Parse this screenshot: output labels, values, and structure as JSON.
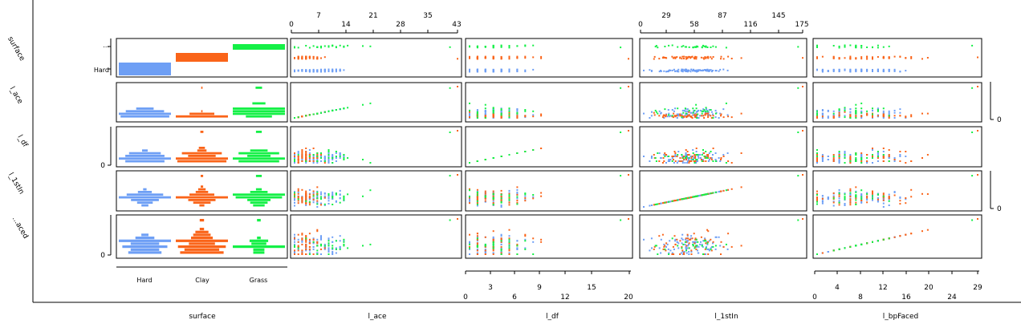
{
  "chart_data": {
    "type": "scatter",
    "matrix_type": "generalized pairs plot",
    "variables": [
      "surface",
      "l_ace",
      "l_df",
      "l_1stIn",
      "l_bpFaced"
    ],
    "row_strip_labels": [
      "surface",
      "l_ace",
      "l_df",
      "l_1stIn",
      "l_bpFaced"
    ],
    "row_label_visible_text": [
      "surface",
      "l_ace",
      "l_df",
      "l_1stIn",
      "...aced"
    ],
    "column_labels": [
      "surface",
      "l_ace",
      "l_df",
      "l_1stIn",
      "l_bpFaced"
    ],
    "categories": [
      "Hard",
      "Clay",
      "Grass"
    ],
    "category_colors": {
      "Hard": "#6e9ff5",
      "Clay": "#fa6419",
      "Grass": "#14f046"
    },
    "surface_counts": {
      "Hard": 1500,
      "Clay": 1050,
      "Grass": 350
    },
    "surface_diag_axis": {
      "ellipsis": "...",
      "label": "Hard"
    },
    "ranges": {
      "l_ace": [
        0,
        43
      ],
      "l_df": [
        0,
        20
      ],
      "l_1stIn": [
        0,
        175
      ],
      "l_bpFaced": [
        0,
        29
      ]
    },
    "top_axes": {
      "l_ace": {
        "row1": [
          "7",
          "21",
          "35"
        ],
        "row2": [
          "0",
          "14",
          "28",
          "43"
        ],
        "row2_values": [
          0,
          14,
          28,
          43
        ]
      },
      "l_1stIn": {
        "row1": [
          "29",
          "87",
          "145"
        ],
        "row2": [
          "0",
          "58",
          "116",
          "175"
        ],
        "row2_values": [
          0,
          58,
          116,
          175
        ]
      }
    },
    "bottom_axes": {
      "surface": [
        "Hard",
        "Clay",
        "Grass"
      ],
      "l_df": {
        "row1": [
          "3",
          "9",
          "15"
        ],
        "row2": [
          "0",
          "6",
          "12",
          "20"
        ],
        "row2_values": [
          0,
          6,
          12,
          20
        ]
      },
      "l_bpFaced": {
        "row1": [
          "4",
          "12",
          "20",
          "29"
        ],
        "row2": [
          "0",
          "8",
          "16",
          "24"
        ],
        "row2_values": [
          0,
          8,
          16,
          24
        ]
      }
    },
    "left_axis_zero_label": "0",
    "right_axis_zero_label": "0",
    "typical": {
      "Hard": {
        "l_ace": 6,
        "l_df": 3,
        "l_1stIn": 50,
        "l_bpFaced": 7
      },
      "Clay": {
        "l_ace": 3,
        "l_df": 3.5,
        "l_1stIn": 52,
        "l_bpFaced": 8
      },
      "Grass": {
        "l_ace": 8,
        "l_df": 3,
        "l_1stIn": 55,
        "l_bpFaced": 7
      }
    },
    "grid": false,
    "legend": "none"
  }
}
